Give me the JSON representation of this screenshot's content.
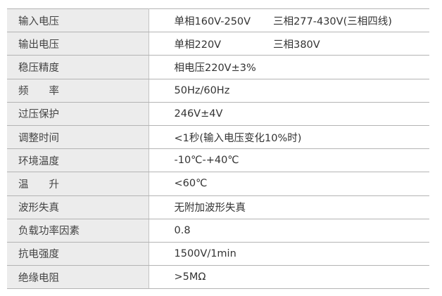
{
  "rows": [
    {
      "label": "输入电压",
      "value": "单相160V-250V",
      "value2": "三相277-430V(三相四线)"
    },
    {
      "label": "输出电压",
      "value": "单相220V",
      "value2": "三相380V"
    },
    {
      "label": "稳压精度",
      "value": "相电压220V±3%"
    },
    {
      "label": "频　　率",
      "value": "50Hz/60Hz"
    },
    {
      "label": "过压保护",
      "value": "246V±4V"
    },
    {
      "label": "调整时间",
      "value": "<1秒(输入电压变化10%时)"
    },
    {
      "label": "环境温度",
      "value": "-10℃-+40℃"
    },
    {
      "label": "温　　升",
      "value": "<60℃"
    },
    {
      "label": "波形失真",
      "value": "无附加波形失真"
    },
    {
      "label": "负载功率因素",
      "value": "0.8"
    },
    {
      "label": "抗电强度",
      "value": "1500V/1min"
    },
    {
      "label": "绝缘电阻",
      "value": ">5MΩ"
    }
  ]
}
